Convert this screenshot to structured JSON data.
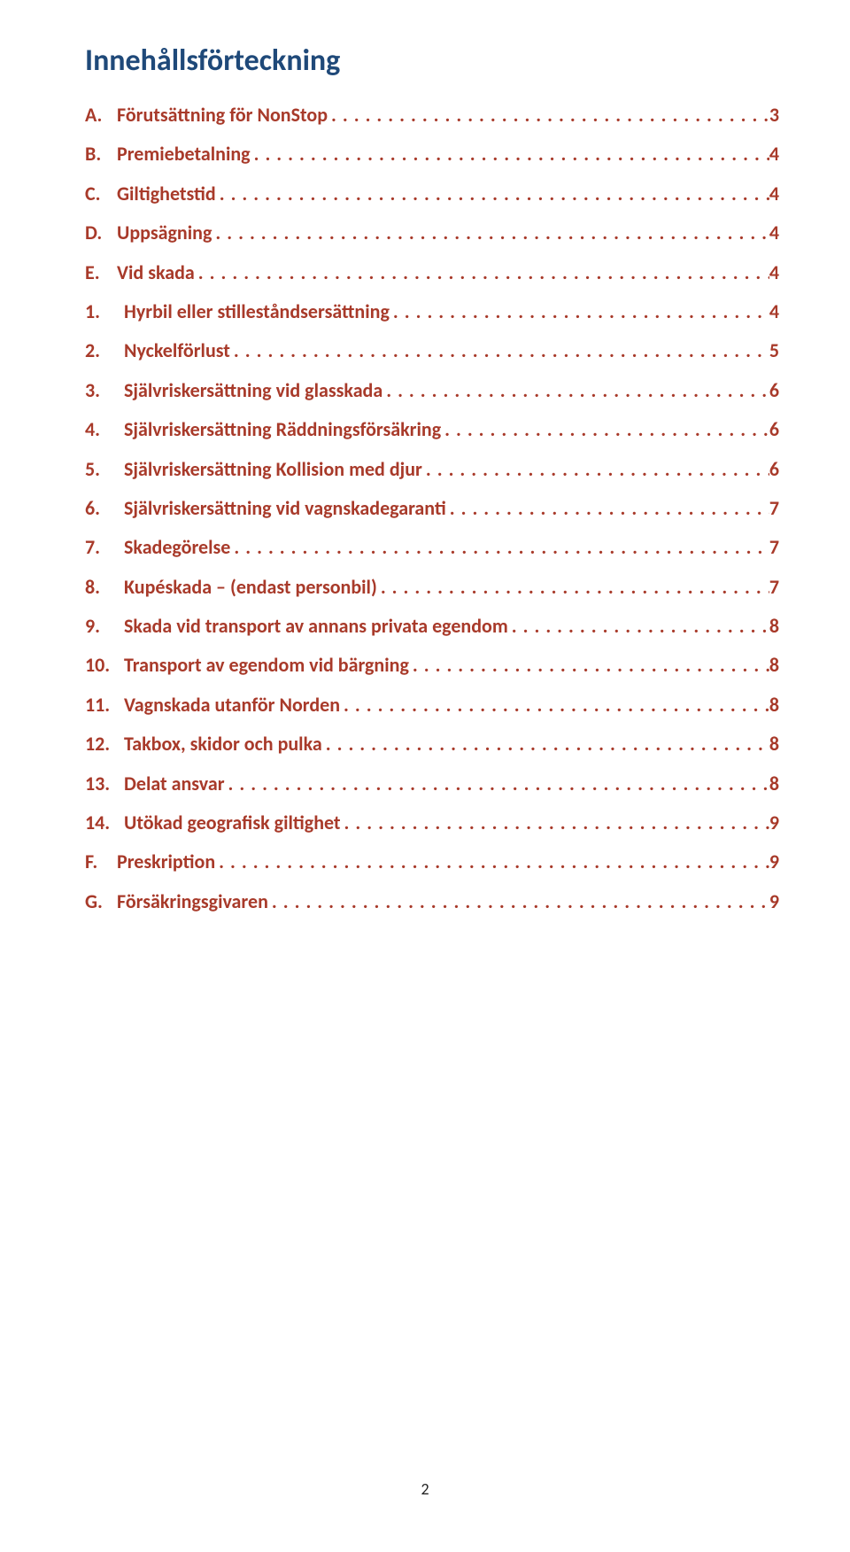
{
  "title": "Innehållsförteckning",
  "title_color": "#1f4979",
  "title_fontsize": 34,
  "link_color": "#a83a2a",
  "entry_fontsize": 22,
  "marker_width_letter": 36,
  "marker_width_number": 44,
  "entries": [
    {
      "marker": "A.",
      "label": "Förutsättning för NonStop",
      "page": "3",
      "marker_type": "letter"
    },
    {
      "marker": "B.",
      "label": "Premiebetalning",
      "page": "4",
      "marker_type": "letter"
    },
    {
      "marker": "C.",
      "label": "Giltighetstid",
      "page": "4",
      "marker_type": "letter"
    },
    {
      "marker": "D.",
      "label": "Uppsägning",
      "page": "4",
      "marker_type": "letter"
    },
    {
      "marker": "E.",
      "label": "Vid skada",
      "page": "4",
      "marker_type": "letter"
    },
    {
      "marker": "1.",
      "label": "Hyrbil eller stilleståndsersättning",
      "page": "4",
      "marker_type": "number"
    },
    {
      "marker": "2.",
      "label": "Nyckelförlust",
      "page": "5",
      "marker_type": "number"
    },
    {
      "marker": "3.",
      "label": "Självriskersättning vid glasskada",
      "page": "6",
      "marker_type": "number"
    },
    {
      "marker": "4.",
      "label": "Självriskersättning Räddningsförsäkring",
      "page": "6",
      "marker_type": "number"
    },
    {
      "marker": "5.",
      "label": "Självriskersättning Kollision med djur",
      "page": "6",
      "marker_type": "number"
    },
    {
      "marker": "6.",
      "label": "Självriskersättning vid vagnskadegaranti",
      "page": "7",
      "marker_type": "number"
    },
    {
      "marker": "7.",
      "label": "Skadegörelse",
      "page": "7",
      "marker_type": "number"
    },
    {
      "marker": "8.",
      "label": "Kupéskada – (endast personbil)",
      "page": "7",
      "marker_type": "number"
    },
    {
      "marker": "9.",
      "label": "Skada vid transport av annans privata egendom",
      "page": "8",
      "marker_type": "number"
    },
    {
      "marker": "10.",
      "label": "Transport av egendom vid bärgning",
      "page": "8",
      "marker_type": "number"
    },
    {
      "marker": "11.",
      "label": "Vagnskada utanför Norden",
      "page": "8",
      "marker_type": "number"
    },
    {
      "marker": "12.",
      "label": "Takbox, skidor och pulka",
      "page": "8",
      "marker_type": "number"
    },
    {
      "marker": "13.",
      "label": "Delat ansvar",
      "page": "8",
      "marker_type": "number"
    },
    {
      "marker": "14.",
      "label": "Utökad geografisk giltighet",
      "page": "9",
      "marker_type": "number"
    },
    {
      "marker": "F.",
      "label": "Preskription",
      "page": "9",
      "marker_type": "letter"
    },
    {
      "marker": "G.",
      "label": "Försäkringsgivaren",
      "page": "9",
      "marker_type": "letter"
    }
  ],
  "dot_leader": ". . . . . . . . . . . . . . . . . . . . . . . . . . . . . . . . . . . . . . . . . . . . . . . . . . . . . . . . . . . . . . . . . . . . . . . . . . . . . . . . . . . . . . . . . . . . . . . . . . . . . . . . . . . . . . . . . . . . . . . . . . . . . . . . . . . . . . . . . . . . . . . . . . . . . . . . . . . . . . . . . . . . . . . . . . . . . . . . . . . . . . . . . . . . . . . . . . . . . . . . . . . . . . . . . . . . . . . . . . . .",
  "footer_page_number": "2"
}
